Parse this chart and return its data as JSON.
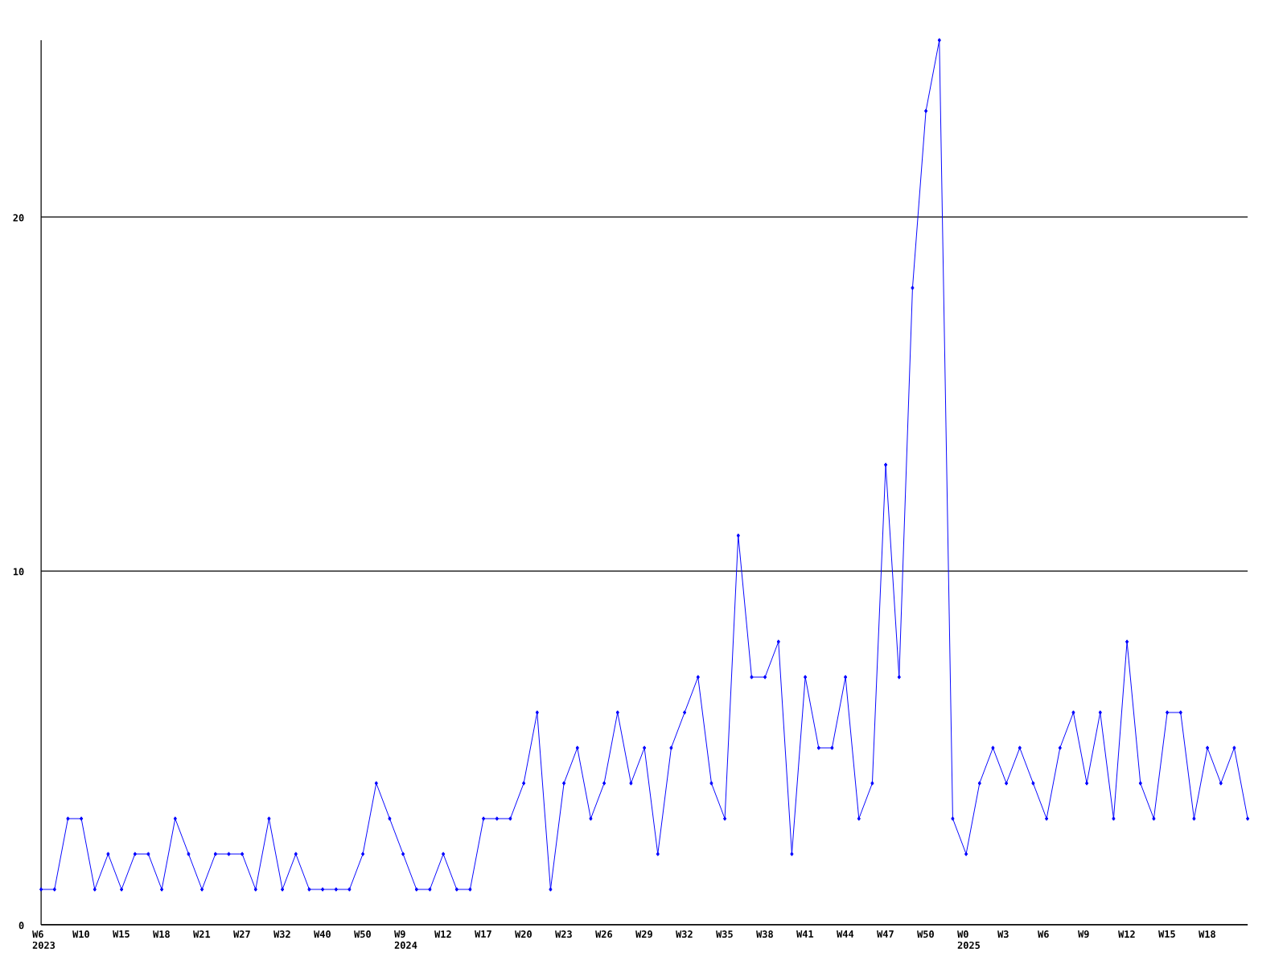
{
  "chart_data": {
    "type": "line",
    "categories": [
      "W6 2023",
      null,
      null,
      "W10",
      null,
      null,
      "W15",
      null,
      null,
      "W18",
      null,
      null,
      "W21",
      null,
      null,
      "W27",
      null,
      null,
      "W32",
      null,
      null,
      "W40",
      null,
      null,
      "W50",
      null,
      null,
      "W9 2024",
      null,
      null,
      "W12",
      null,
      null,
      "W17",
      null,
      null,
      "W20",
      null,
      null,
      "W23",
      null,
      null,
      "W26",
      null,
      null,
      "W29",
      null,
      null,
      "W32",
      null,
      null,
      "W35",
      null,
      null,
      "W38",
      null,
      null,
      "W41",
      null,
      null,
      "W44",
      null,
      null,
      "W47",
      null,
      null,
      "W50",
      null,
      null,
      "W0 2025",
      null,
      null,
      "W3",
      null,
      null,
      "W6",
      null,
      null,
      "W9",
      null,
      null,
      "W12",
      null,
      null,
      "W15",
      null,
      null,
      "W18",
      null,
      null,
      null
    ],
    "values": [
      1,
      1,
      3,
      3,
      1,
      2,
      1,
      2,
      2,
      1,
      3,
      2,
      1,
      2,
      2,
      2,
      1,
      3,
      1,
      2,
      1,
      1,
      1,
      1,
      2,
      4,
      3,
      2,
      1,
      1,
      2,
      1,
      1,
      3,
      3,
      3,
      4,
      6,
      1,
      4,
      5,
      3,
      4,
      6,
      4,
      5,
      2,
      5,
      6,
      7,
      4,
      3,
      11,
      7,
      7,
      8,
      2,
      7,
      5,
      5,
      7,
      3,
      4,
      13,
      7,
      18,
      23,
      25,
      3,
      2,
      4,
      5,
      4,
      5,
      4,
      3,
      5,
      6,
      4,
      6,
      3,
      8,
      4,
      3,
      6,
      6,
      3,
      5,
      4,
      5,
      3
    ],
    "color": "#0000ff",
    "marker": "diamond",
    "ylim": [
      0,
      25
    ],
    "yticks": [
      0,
      10,
      20
    ],
    "grid": "y"
  }
}
